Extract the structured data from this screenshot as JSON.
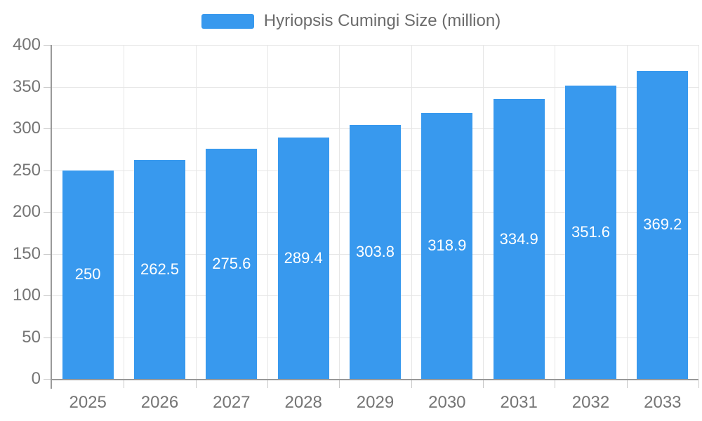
{
  "chart_data": {
    "type": "bar",
    "categories": [
      "2025",
      "2026",
      "2027",
      "2028",
      "2029",
      "2030",
      "2031",
      "2032",
      "2033"
    ],
    "series": [
      {
        "name": "Hyriopsis Cumingi Size (million)",
        "values": [
          250,
          262.5,
          275.6,
          289.4,
          303.8,
          318.9,
          334.9,
          351.6,
          369.2
        ]
      }
    ],
    "value_labels": [
      "250",
      "262.5",
      "275.6",
      "289.4",
      "303.8",
      "318.9",
      "334.9",
      "351.6",
      "369.2"
    ],
    "title": "",
    "xlabel": "",
    "ylabel": "",
    "ylim": [
      0,
      400
    ],
    "ytick_step": 50,
    "ytick_labels": [
      "0",
      "50",
      "100",
      "150",
      "200",
      "250",
      "300",
      "350",
      "400"
    ],
    "grid": true,
    "legend": {
      "position": "top",
      "entries": [
        "Hyriopsis Cumingi Size (million)"
      ]
    },
    "colors": {
      "bar": "#3899EE",
      "grid": "#E6E6E6",
      "axis_line": "#999999",
      "tick": "#C8C8C8",
      "axis_text": "#757575",
      "legend_text": "#6B6B6B",
      "value_text": "#FFFFFF",
      "background": "#FFFFFF"
    }
  }
}
